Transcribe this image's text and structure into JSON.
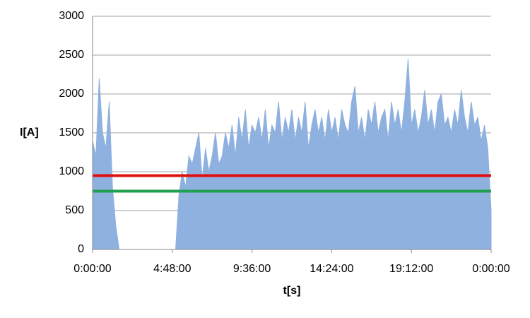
{
  "chart_data": {
    "type": "area",
    "color": "#8fb1e0",
    "y_label": "I[A]",
    "x_label": "t[s]",
    "x": [
      0,
      720,
      1440,
      2160,
      2880,
      3600,
      4320,
      5040,
      5760,
      6480,
      7200,
      7920,
      8640,
      9360,
      10080,
      10800,
      11520,
      12240,
      12960,
      13680,
      14400,
      15120,
      15840,
      16560,
      17280,
      18000,
      18720,
      19440,
      20160,
      20880,
      21600,
      22320,
      23040,
      23760,
      24480,
      25200,
      25920,
      26640,
      27360,
      28080,
      28800,
      29520,
      30240,
      30960,
      31680,
      32400,
      33120,
      33840,
      34560,
      35280,
      36000,
      36720,
      37440,
      38160,
      38880,
      39600,
      40320,
      41040,
      41760,
      42480,
      43200,
      43920,
      44640,
      45360,
      46080,
      46800,
      47520,
      48240,
      48960,
      49680,
      50400,
      51120,
      51840,
      52560,
      53280,
      54000,
      54720,
      55440,
      56160,
      56880,
      57600,
      58320,
      59040,
      59760,
      60480,
      61200,
      61920,
      62640,
      63360,
      64080,
      64800,
      65520,
      66240,
      66960,
      67680,
      68400,
      69120,
      69840,
      70560,
      71280,
      72000,
      72720,
      73440,
      74160,
      74880,
      75600,
      76320,
      77040,
      77760,
      78480,
      79200,
      79920,
      80640,
      81360,
      82080,
      82800,
      83520,
      84240,
      84960,
      85680,
      86400
    ],
    "values": [
      1400,
      1200,
      2200,
      1500,
      1300,
      1900,
      800,
      300,
      0,
      0,
      0,
      0,
      0,
      0,
      0,
      0,
      0,
      0,
      0,
      0,
      0,
      0,
      0,
      0,
      0,
      0,
      700,
      1000,
      800,
      1200,
      1100,
      1300,
      1500,
      900,
      1300,
      1000,
      1200,
      1500,
      1100,
      1200,
      1500,
      1300,
      1600,
      1200,
      1700,
      1400,
      1800,
      1300,
      1600,
      1500,
      1700,
      1400,
      1800,
      1300,
      1600,
      1500,
      1900,
      1400,
      1700,
      1500,
      1800,
      1400,
      1700,
      1500,
      1900,
      1300,
      1600,
      1800,
      1500,
      1700,
      1400,
      1800,
      1500,
      1700,
      1400,
      1800,
      1600,
      1500,
      1900,
      2100,
      1500,
      1700,
      1400,
      1800,
      1600,
      1900,
      1500,
      1700,
      1800,
      1400,
      1900,
      1600,
      1800,
      1500,
      1900,
      2450,
      1600,
      1800,
      1500,
      1700,
      2050,
      1600,
      1800,
      1500,
      1900,
      2000,
      1600,
      1700,
      1500,
      1800,
      1600,
      2050,
      1700,
      1500,
      1900,
      1600,
      1700,
      1400,
      1600,
      1300,
      500
    ],
    "hlines": [
      {
        "value": 950,
        "color": "#e01010"
      },
      {
        "value": 750,
        "color": "#20a050"
      }
    ],
    "xlim": [
      0,
      86400
    ],
    "xticks": [
      {
        "value": 0,
        "label": "0:00:00"
      },
      {
        "value": 17280,
        "label": "4:48:00"
      },
      {
        "value": 34560,
        "label": "9:36:00"
      },
      {
        "value": 51840,
        "label": "14:24:00"
      },
      {
        "value": 69120,
        "label": "19:12:00"
      },
      {
        "value": 86400,
        "label": "0:00:00"
      }
    ],
    "ylim": [
      0,
      3000
    ],
    "yticks": [
      0,
      500,
      1000,
      1500,
      2000,
      2500,
      3000
    ],
    "grid": true
  }
}
